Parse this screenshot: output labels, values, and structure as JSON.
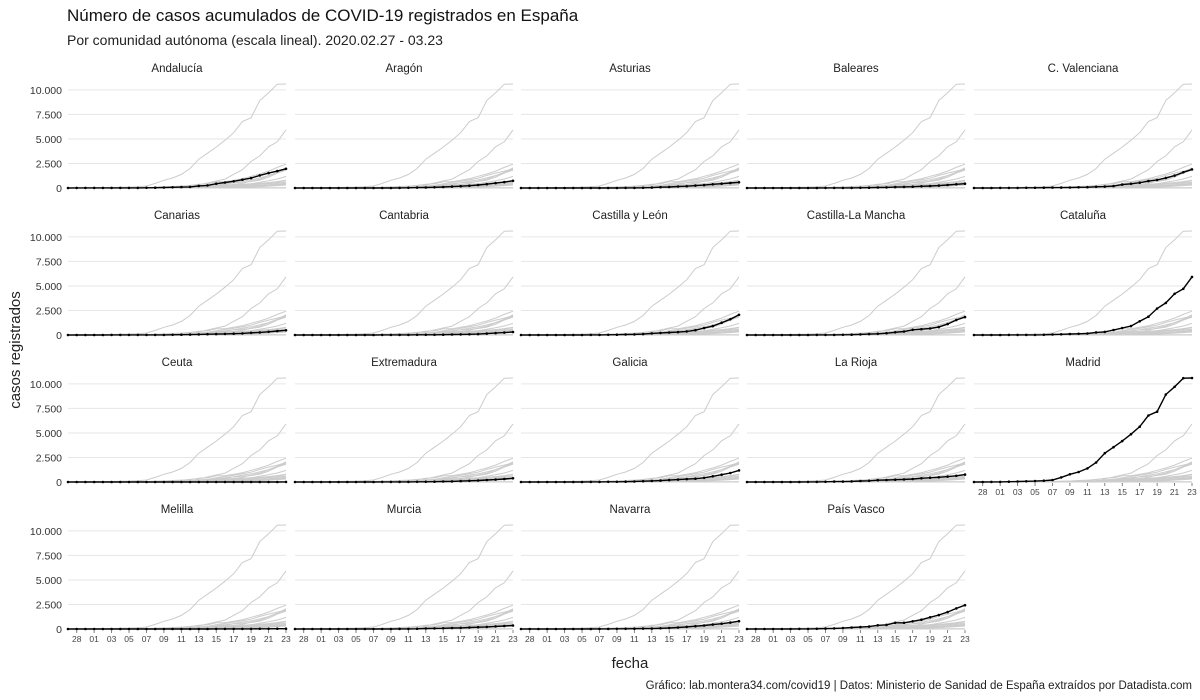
{
  "chart_data": {
    "type": "line",
    "title": "Número de casos acumulados de COVID-19 registrados en España",
    "subtitle": "Por comunidad autónoma (escala lineal). 2020.02.27 - 03.23",
    "xlabel": "fecha",
    "ylabel": "casos registrados",
    "caption": "Gráfico: lab.montera34.com/covid19 | Datos: Ministerio de Sanidad de España extraídos por Datadista.com",
    "ylim": [
      0,
      10600
    ],
    "yticks": [
      0,
      2500,
      5000,
      7500,
      10000
    ],
    "ytick_labels": [
      "0",
      "2.500",
      "5.000",
      "7.500",
      "10.000"
    ],
    "xtick_labels": [
      "28",
      "01",
      "03",
      "05",
      "07",
      "09",
      "11",
      "13",
      "15",
      "17",
      "19",
      "21",
      "23"
    ],
    "dates": [
      "02-27",
      "02-28",
      "02-29",
      "03-01",
      "03-02",
      "03-03",
      "03-04",
      "03-05",
      "03-06",
      "03-07",
      "03-08",
      "03-09",
      "03-10",
      "03-11",
      "03-12",
      "03-13",
      "03-14",
      "03-15",
      "03-16",
      "03-17",
      "03-18",
      "03-19",
      "03-20",
      "03-21",
      "03-22",
      "03-23"
    ],
    "grid": true,
    "background_color": "#cccccc",
    "highlight_color": "#000000",
    "series": [
      {
        "name": "Andalucía",
        "values": [
          1,
          6,
          8,
          12,
          12,
          13,
          13,
          13,
          13,
          20,
          28,
          52,
          71,
          90,
          115,
          219,
          269,
          437,
          557,
          683,
          842,
          1008,
          1287,
          1515,
          1725,
          1961
        ]
      },
      {
        "name": "Aragón",
        "values": [
          0,
          0,
          0,
          0,
          0,
          0,
          0,
          0,
          1,
          1,
          4,
          4,
          13,
          24,
          40,
          56,
          71,
          102,
          140,
          183,
          235,
          301,
          385,
          497,
          599,
          738
        ]
      },
      {
        "name": "Asturias",
        "values": [
          0,
          0,
          0,
          0,
          1,
          1,
          1,
          2,
          2,
          2,
          5,
          5,
          11,
          15,
          21,
          38,
          77,
          105,
          148,
          188,
          241,
          300,
          382,
          435,
          513,
          581
        ]
      },
      {
        "name": "Baleares",
        "values": [
          2,
          2,
          2,
          2,
          2,
          2,
          2,
          4,
          5,
          6,
          8,
          10,
          12,
          16,
          31,
          48,
          58,
          94,
          109,
          135,
          169,
          203,
          245,
          301,
          374,
          436
        ]
      },
      {
        "name": "C. Valenciana",
        "values": [
          2,
          3,
          3,
          7,
          9,
          14,
          19,
          23,
          30,
          37,
          45,
          52,
          68,
          85,
          119,
          147,
          198,
          348,
          423,
          543,
          703,
          827,
          1026,
          1264,
          1604,
          1897
        ]
      },
      {
        "name": "Canarias",
        "values": [
          1,
          1,
          2,
          2,
          4,
          6,
          7,
          7,
          7,
          10,
          11,
          14,
          16,
          30,
          37,
          59,
          80,
          90,
          109,
          134,
          168,
          221,
          269,
          329,
          406,
          483
        ]
      },
      {
        "name": "Cantabria",
        "values": [
          0,
          0,
          0,
          0,
          0,
          0,
          0,
          0,
          1,
          1,
          6,
          8,
          10,
          12,
          16,
          19,
          24,
          28,
          54,
          60,
          75,
          92,
          143,
          195,
          247,
          305
        ]
      },
      {
        "name": "Castilla y León",
        "values": [
          0,
          0,
          0,
          0,
          2,
          2,
          2,
          2,
          8,
          11,
          21,
          32,
          46,
          59,
          91,
          162,
          209,
          253,
          291,
          365,
          494,
          701,
          904,
          1251,
          1600,
          2056
        ]
      },
      {
        "name": "Castilla-La Mancha",
        "values": [
          0,
          0,
          0,
          0,
          0,
          2,
          3,
          3,
          7,
          10,
          13,
          24,
          32,
          58,
          91,
          123,
          184,
          276,
          355,
          525,
          587,
          658,
          801,
          1111,
          1531,
          1823
        ]
      },
      {
        "name": "Cataluña",
        "values": [
          0,
          1,
          1,
          2,
          6,
          10,
          15,
          15,
          23,
          49,
          75,
          101,
          124,
          156,
          260,
          316,
          509,
          715,
          903,
          1394,
          1866,
          2702,
          3270,
          4203,
          4704,
          5925
        ]
      },
      {
        "name": "Ceuta",
        "values": [
          0,
          0,
          0,
          0,
          0,
          0,
          0,
          0,
          0,
          0,
          0,
          0,
          0,
          0,
          0,
          1,
          1,
          1,
          1,
          1,
          2,
          2,
          2,
          3,
          3,
          6
        ]
      },
      {
        "name": "Extremadura",
        "values": [
          0,
          0,
          0,
          0,
          0,
          1,
          2,
          3,
          4,
          5,
          6,
          6,
          7,
          11,
          16,
          23,
          34,
          46,
          60,
          88,
          120,
          157,
          207,
          245,
          302,
          377
        ]
      },
      {
        "name": "Galicia",
        "values": [
          0,
          0,
          0,
          0,
          1,
          2,
          2,
          4,
          6,
          8,
          18,
          22,
          35,
          50,
          85,
          115,
          140,
          195,
          245,
          292,
          341,
          423,
          578,
          739,
          915,
          1180
        ]
      },
      {
        "name": "La Rioja",
        "values": [
          0,
          0,
          0,
          0,
          0,
          1,
          3,
          8,
          11,
          17,
          36,
          44,
          64,
          102,
          120,
          180,
          208,
          233,
          268,
          303,
          381,
          436,
          480,
          555,
          629,
          751
        ]
      },
      {
        "name": "Madrid",
        "values": [
          1,
          5,
          10,
          12,
          29,
          49,
          70,
          90,
          137,
          202,
          469,
          782,
          1024,
          1388,
          1990,
          2940,
          3544,
          4165,
          4871,
          5637,
          6777,
          7165,
          8921,
          9702,
          10575,
          11400
        ]
      },
      {
        "name": "Melilla",
        "values": [
          0,
          0,
          0,
          0,
          0,
          0,
          0,
          0,
          0,
          0,
          1,
          1,
          1,
          1,
          1,
          2,
          5,
          6,
          8,
          9,
          10,
          13,
          18,
          23,
          26,
          28
        ]
      },
      {
        "name": "Murcia",
        "values": [
          0,
          0,
          0,
          0,
          0,
          0,
          0,
          0,
          1,
          1,
          4,
          4,
          6,
          12,
          19,
          50,
          60,
          75,
          100,
          113,
          149,
          186,
          214,
          263,
          305,
          360
        ]
      },
      {
        "name": "Navarra",
        "values": [
          0,
          0,
          0,
          0,
          1,
          1,
          1,
          2,
          3,
          8,
          11,
          17,
          24,
          27,
          36,
          43,
          75,
          107,
          157,
          215,
          283,
          354,
          446,
          539,
          650,
          800
        ]
      },
      {
        "name": "País Vasco",
        "values": [
          0,
          0,
          0,
          0,
          0,
          2,
          10,
          15,
          21,
          45,
          66,
          94,
          149,
          195,
          242,
          378,
          418,
          630,
          630,
          789,
          950,
          1190,
          1432,
          1725,
          2097,
          2421
        ]
      }
    ]
  }
}
